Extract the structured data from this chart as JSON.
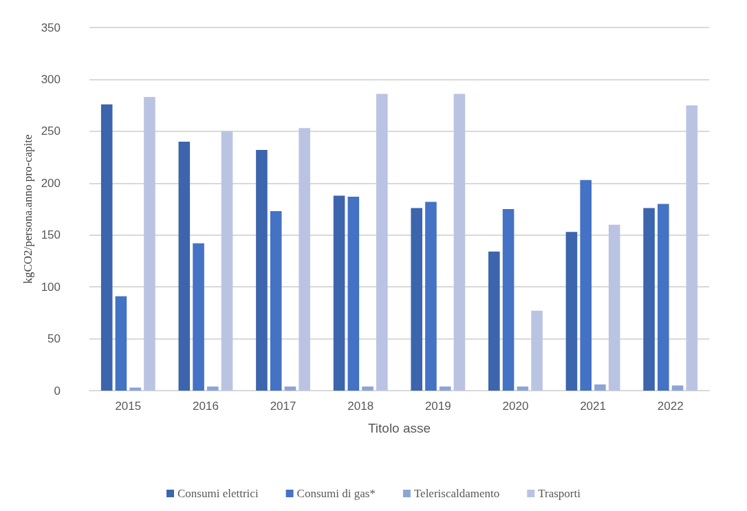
{
  "chart_data": {
    "type": "bar",
    "xlabel": "Titolo asse",
    "ylabel": "kgCO2/persona.anno pro-capite",
    "categories": [
      "2015",
      "2016",
      "2017",
      "2018",
      "2019",
      "2020",
      "2021",
      "2022"
    ],
    "series": [
      {
        "name": "Consumi elettrici",
        "color": "#3c65ad",
        "values": [
          276,
          240,
          232,
          188,
          176,
          134,
          153,
          176
        ]
      },
      {
        "name": "Consumi di gas*",
        "color": "#4472c4",
        "values": [
          91,
          142,
          173,
          187,
          182,
          175,
          203,
          180
        ]
      },
      {
        "name": "Teleriscaldamento",
        "color": "#8fa4d6",
        "values": [
          3,
          4,
          4,
          4,
          4,
          4,
          6,
          5
        ]
      },
      {
        "name": "Trasporti",
        "color": "#bac4e2",
        "values": [
          283,
          250,
          253,
          286,
          286,
          77,
          160,
          275
        ]
      }
    ],
    "ylim": [
      0,
      350
    ],
    "yticks": [
      0,
      50,
      100,
      150,
      200,
      250,
      300,
      350
    ],
    "grid": "y",
    "legend": "bottom"
  }
}
